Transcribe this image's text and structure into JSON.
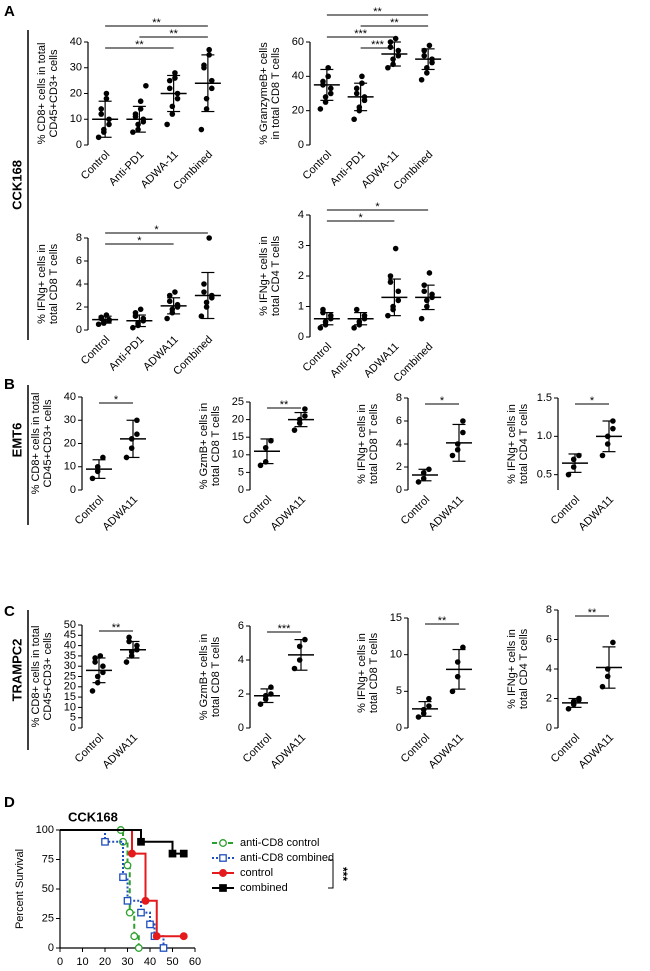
{
  "panels": [
    {
      "letter": "A",
      "label": "CCK168"
    },
    {
      "letter": "B",
      "label": "EMT6"
    },
    {
      "letter": "C",
      "label": "TRAMPC2"
    },
    {
      "letter": "D"
    }
  ],
  "chart_data": [
    {
      "type": "dotplot",
      "ylabel": [
        "% CD8+ cells in total",
        "CD45+CD3+ cells"
      ],
      "categories": [
        "Control",
        "Anti-PD1",
        "ADWA-11",
        "Combined"
      ],
      "ylim": [
        0,
        40
      ],
      "yticks": [
        0,
        10,
        20,
        30,
        40
      ],
      "values": [
        [
          3,
          5,
          6,
          8,
          10,
          12,
          14,
          18,
          20
        ],
        [
          5,
          6,
          8,
          9,
          10,
          11,
          12,
          14,
          17,
          23
        ],
        [
          8,
          12,
          15,
          18,
          20,
          22,
          25,
          26,
          28
        ],
        [
          6,
          14,
          18,
          22,
          25,
          30,
          31,
          35,
          37
        ]
      ],
      "mean": [
        10,
        10,
        20,
        24
      ],
      "sd": [
        7,
        5,
        7,
        11
      ],
      "brackets": [
        {
          "from": 0,
          "to": 2,
          "label": "**"
        },
        {
          "from": 1,
          "to": 3,
          "label": "**"
        },
        {
          "from": 0,
          "to": 3,
          "label": "**"
        }
      ]
    },
    {
      "type": "dotplot",
      "ylabel": [
        "% GranzymeB+ cells",
        "in total CD8 T cells"
      ],
      "categories": [
        "Control",
        "Anti-PD1",
        "ADWA-11",
        "Combined"
      ],
      "ylim": [
        0,
        60
      ],
      "yticks": [
        0,
        20,
        40,
        60
      ],
      "values": [
        [
          21,
          25,
          28,
          30,
          33,
          35,
          37,
          40,
          45
        ],
        [
          15,
          20,
          22,
          26,
          28,
          30,
          33,
          36,
          40
        ],
        [
          45,
          47,
          50,
          52,
          55,
          57,
          60,
          62
        ],
        [
          38,
          42,
          45,
          48,
          50,
          52,
          55,
          58
        ]
      ],
      "mean": [
        35,
        28,
        53,
        50
      ],
      "sd": [
        9,
        8,
        7,
        6
      ],
      "brackets": [
        {
          "from": 1,
          "to": 2,
          "label": "***"
        },
        {
          "from": 0,
          "to": 2,
          "label": "***"
        },
        {
          "from": 1,
          "to": 3,
          "label": "**"
        },
        {
          "from": 0,
          "to": 3,
          "label": "**"
        }
      ]
    },
    {
      "type": "dotplot",
      "ylabel": [
        "% IFNg+ cells in",
        "total CD8 T cells"
      ],
      "categories": [
        "Control",
        "Anti-PD1",
        "ADWA11",
        "Combined"
      ],
      "ylim": [
        0,
        8
      ],
      "yticks": [
        0,
        2,
        4,
        6,
        8
      ],
      "values": [
        [
          0.5,
          0.6,
          0.7,
          0.8,
          0.9,
          1.0,
          1.1,
          1.3
        ],
        [
          0.2,
          0.4,
          0.6,
          0.8,
          1.0,
          1.2,
          1.5,
          1.8
        ],
        [
          1.0,
          1.5,
          1.8,
          2.0,
          2.2,
          2.5,
          3.0,
          3.3
        ],
        [
          1.2,
          2.0,
          2.4,
          2.8,
          3.0,
          3.3,
          4.0,
          8.0
        ]
      ],
      "mean": [
        0.9,
        0.8,
        2.1,
        3.0
      ],
      "sd": [
        0.3,
        0.5,
        0.7,
        2.0
      ],
      "brackets": [
        {
          "from": 0,
          "to": 2,
          "label": "*"
        },
        {
          "from": 0,
          "to": 3,
          "label": "*"
        }
      ]
    },
    {
      "type": "dotplot",
      "ylabel": [
        "% IFNg+ cells in",
        "total CD4 T cells"
      ],
      "categories": [
        "Control",
        "Anti-PD1",
        "ADWA11",
        "Combined"
      ],
      "ylim": [
        0,
        4
      ],
      "yticks": [
        0,
        1,
        2,
        3,
        4
      ],
      "values": [
        [
          0.3,
          0.4,
          0.5,
          0.6,
          0.7,
          0.8,
          0.9
        ],
        [
          0.3,
          0.4,
          0.5,
          0.6,
          0.7,
          0.9
        ],
        [
          0.7,
          0.9,
          1.0,
          1.2,
          1.5,
          1.8,
          2.0,
          2.9
        ],
        [
          0.6,
          1.0,
          1.2,
          1.3,
          1.4,
          1.5,
          1.7,
          2.1
        ]
      ],
      "mean": [
        0.6,
        0.6,
        1.3,
        1.3
      ],
      "sd": [
        0.2,
        0.2,
        0.6,
        0.4
      ],
      "brackets": [
        {
          "from": 0,
          "to": 2,
          "label": "*"
        },
        {
          "from": 0,
          "to": 3,
          "label": "*"
        }
      ]
    },
    {
      "type": "dotplot",
      "ylabel": [
        "% CD8+ cells in total",
        "CD45+CD3+ cells"
      ],
      "categories": [
        "Control",
        "ADWA11"
      ],
      "ylim": [
        0,
        40
      ],
      "yticks": [
        0,
        10,
        20,
        30,
        40
      ],
      "values": [
        [
          5,
          8,
          10,
          14
        ],
        [
          14,
          18,
          22,
          24,
          30
        ]
      ],
      "mean": [
        9,
        22
      ],
      "sd": [
        4,
        8
      ],
      "brackets": [
        {
          "from": 0,
          "to": 1,
          "label": "*"
        }
      ]
    },
    {
      "type": "dotplot",
      "ylabel": [
        "% GzmB+ cells in",
        "total CD8 T cells"
      ],
      "categories": [
        "Control",
        "ADWA11"
      ],
      "ylim": [
        0,
        25
      ],
      "yticks": [
        0,
        5,
        10,
        15,
        20,
        25
      ],
      "values": [
        [
          7,
          8,
          12,
          14
        ],
        [
          17,
          19,
          20,
          21,
          23
        ]
      ],
      "mean": [
        11,
        20
      ],
      "sd": [
        3.5,
        2
      ],
      "brackets": [
        {
          "from": 0,
          "to": 1,
          "label": "**"
        }
      ]
    },
    {
      "type": "dotplot",
      "ylabel": [
        "% IFNg+ cells in",
        "total CD8 T cells"
      ],
      "categories": [
        "Control",
        "ADWA11"
      ],
      "ylim": [
        0,
        8
      ],
      "yticks": [
        0,
        2,
        4,
        6,
        8
      ],
      "values": [
        [
          0.7,
          1.0,
          1.5,
          1.8
        ],
        [
          3,
          3.5,
          4,
          5,
          6
        ]
      ],
      "mean": [
        1.3,
        4.1
      ],
      "sd": [
        0.5,
        1.6
      ],
      "brackets": [
        {
          "from": 0,
          "to": 1,
          "label": "*"
        }
      ]
    },
    {
      "type": "dotplot",
      "ylabel": [
        "% IFNg+ cells in",
        "total CD4 T cells"
      ],
      "categories": [
        "Control",
        "ADWA11"
      ],
      "ylim": [
        0.3,
        1.5
      ],
      "yticks": [
        {
          "value": 0.5,
          "label": "0.5"
        },
        {
          "value": 1,
          "label": "1.0"
        },
        {
          "value": 1.5,
          "label": "1.5"
        }
      ],
      "values": [
        [
          0.5,
          0.6,
          0.7,
          0.75
        ],
        [
          0.75,
          0.9,
          1.0,
          1.1,
          1.2
        ]
      ],
      "mean": [
        0.65,
        1.0
      ],
      "sd": [
        0.12,
        0.2
      ],
      "brackets": [
        {
          "from": 0,
          "to": 1,
          "label": "*"
        }
      ]
    },
    {
      "type": "dotplot",
      "ylabel": [
        "% CD8+ cells in total",
        "CD45+CD3+ cells"
      ],
      "categories": [
        "Control",
        "ADWA11"
      ],
      "ylim": [
        0,
        50
      ],
      "yticks": [
        0,
        5,
        10,
        15,
        20,
        25,
        30,
        35,
        40,
        45,
        50
      ],
      "values": [
        [
          18,
          22,
          25,
          27,
          30,
          32,
          34,
          35
        ],
        [
          32,
          35,
          37,
          38,
          40,
          42,
          44
        ]
      ],
      "mean": [
        28,
        38
      ],
      "sd": [
        6,
        4
      ],
      "brackets": [
        {
          "from": 0,
          "to": 1,
          "label": "**"
        }
      ]
    },
    {
      "type": "dotplot",
      "ylabel": [
        "% GzmB+ cells in",
        "total CD8 T cells"
      ],
      "categories": [
        "Control",
        "ADWA11"
      ],
      "ylim": [
        0,
        6
      ],
      "yticks": [
        0,
        2,
        4,
        6
      ],
      "values": [
        [
          1.4,
          1.7,
          1.9,
          2.0,
          2.4
        ],
        [
          3.5,
          4.0,
          4.8,
          5.2
        ]
      ],
      "mean": [
        1.9,
        4.3
      ],
      "sd": [
        0.4,
        0.9
      ],
      "brackets": [
        {
          "from": 0,
          "to": 1,
          "label": "***"
        }
      ]
    },
    {
      "type": "dotplot",
      "ylabel": [
        "% IFNg+ cells in",
        "total CD8 T cells"
      ],
      "categories": [
        "Control",
        "ADWA11"
      ],
      "ylim": [
        0,
        15
      ],
      "yticks": [
        0,
        5,
        10,
        15
      ],
      "values": [
        [
          1.5,
          2,
          2.5,
          3,
          4
        ],
        [
          5,
          7,
          9,
          11
        ]
      ],
      "mean": [
        2.6,
        8
      ],
      "sd": [
        1,
        2.7
      ],
      "brackets": [
        {
          "from": 0,
          "to": 1,
          "label": "**"
        }
      ]
    },
    {
      "type": "dotplot",
      "ylabel": [
        "% IFNg+ cells in",
        "total CD4 T cells"
      ],
      "categories": [
        "Control",
        "ADWA11"
      ],
      "ylim": [
        0,
        8
      ],
      "yticks": [
        0,
        2,
        4,
        6,
        8
      ],
      "values": [
        [
          1.3,
          1.6,
          1.8,
          1.9,
          2.0
        ],
        [
          2.8,
          3.5,
          4.0,
          5.8
        ]
      ],
      "mean": [
        1.7,
        4.1
      ],
      "sd": [
        0.3,
        1.4
      ],
      "brackets": [
        {
          "from": 0,
          "to": 1,
          "label": "**"
        }
      ]
    },
    {
      "type": "survival",
      "title": "CCK168",
      "ylabel": "Percent Survival",
      "xlim": [
        0,
        60
      ],
      "xticks": [
        0,
        10,
        20,
        30,
        40,
        50,
        60
      ],
      "ylim": [
        0,
        100
      ],
      "yticks": [
        0,
        25,
        50,
        75,
        100
      ],
      "significance": "***",
      "series": [
        {
          "name": "anti-CD8 control",
          "color": "#2ca02c",
          "marker": "circle",
          "filled": false,
          "dash": "dashed",
          "x": [
            0,
            27,
            28,
            30,
            31,
            33,
            35
          ],
          "values": [
            100,
            100,
            90,
            70,
            30,
            10,
            0
          ]
        },
        {
          "name": "anti-CD8 combined",
          "color": "#1f4fbf",
          "marker": "square",
          "filled": false,
          "dash": "dotted",
          "x": [
            0,
            20,
            28,
            30,
            36,
            40,
            42,
            46
          ],
          "values": [
            100,
            90,
            60,
            40,
            30,
            20,
            10,
            0
          ]
        },
        {
          "name": "control",
          "color": "#e41a1c",
          "marker": "circle",
          "filled": true,
          "dash": "solid",
          "x": [
            0,
            32,
            38,
            43,
            55
          ],
          "values": [
            100,
            80,
            40,
            10,
            10
          ]
        },
        {
          "name": "combined",
          "color": "#000000",
          "marker": "square",
          "filled": true,
          "dash": "solid",
          "x": [
            0,
            36,
            50,
            55
          ],
          "values": [
            100,
            90,
            80,
            80
          ]
        }
      ]
    }
  ]
}
